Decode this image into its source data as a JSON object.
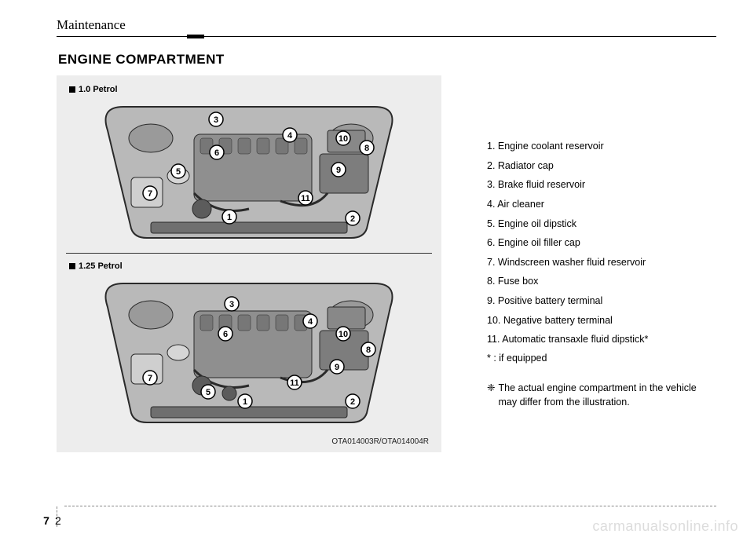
{
  "section": "Maintenance",
  "pageTitle": "ENGINE COMPARTMENT",
  "figures": {
    "a": {
      "label": "1.0 Petrol",
      "callouts": [
        "1",
        "2",
        "3",
        "4",
        "5",
        "6",
        "7",
        "8",
        "9",
        "10",
        "11"
      ]
    },
    "b": {
      "label": "1.25 Petrol",
      "callouts": [
        "1",
        "2",
        "3",
        "4",
        "5",
        "6",
        "7",
        "8",
        "9",
        "10",
        "11"
      ]
    },
    "code": "OTA014003R/OTA014004R",
    "bg_fill": "#b9b9b9",
    "outline": "#2a2a2a",
    "callout_fill": "#ffffff",
    "callout_stroke": "#000000"
  },
  "legend": [
    "1. Engine coolant reservoir",
    "2. Radiator cap",
    "3. Brake fluid reservoir",
    "4. Air cleaner",
    "5. Engine oil dipstick",
    "6. Engine oil filler cap",
    "7. Windscreen washer fluid reservoir",
    "8. Fuse box",
    "9. Positive battery terminal",
    "10. Negative battery terminal",
    "11. Automatic transaxle fluid dipstick*"
  ],
  "ifEquipped": "* : if equipped",
  "noteSymbol": "❈",
  "note": "The actual engine compartment in the vehicle may differ from the illustration.",
  "watermark": "carmanualsonline.info",
  "footer": {
    "chapter": "7",
    "page": "2"
  },
  "callout_positions_a": {
    "1": [
      195,
      150
    ],
    "2": [
      352,
      152
    ],
    "3": [
      178,
      26
    ],
    "4": [
      272,
      46
    ],
    "5": [
      130,
      92
    ],
    "6": [
      179,
      68
    ],
    "7": [
      94,
      120
    ],
    "8": [
      370,
      62
    ],
    "9": [
      334,
      90
    ],
    "10": [
      340,
      50
    ],
    "11": [
      292,
      126
    ]
  },
  "callout_positions_b": {
    "1": [
      215,
      160
    ],
    "2": [
      352,
      160
    ],
    "3": [
      198,
      36
    ],
    "4": [
      298,
      58
    ],
    "5": [
      168,
      148
    ],
    "6": [
      190,
      74
    ],
    "7": [
      94,
      130
    ],
    "8": [
      372,
      94
    ],
    "9": [
      332,
      116
    ],
    "10": [
      340,
      74
    ],
    "11": [
      278,
      136
    ]
  }
}
